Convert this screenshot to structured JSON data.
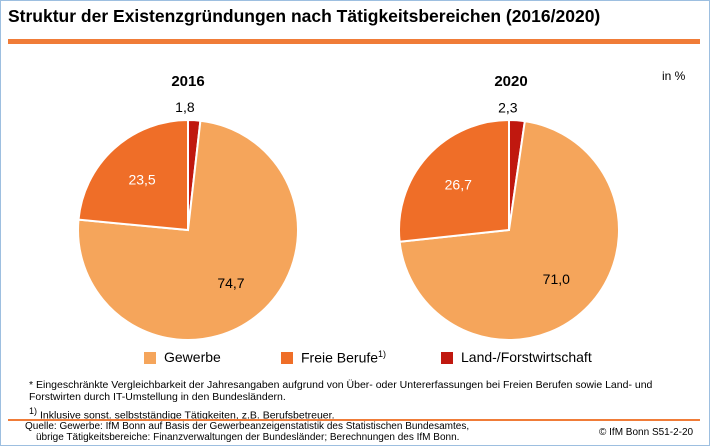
{
  "header": {
    "title": "Struktur der Existenzgründungen nach Tätigkeitsbereichen (2016/2020)",
    "unit": "in %"
  },
  "colors": {
    "accent": "#f07c38",
    "gewerbe": "#f5a55b",
    "freie_berufe": "#ef6e28",
    "land_forst": "#c0180f",
    "pie_border": "#ffffff"
  },
  "chart_data": [
    {
      "type": "pie",
      "title": "2016",
      "slices": [
        {
          "label": "Land-/Forstwirtschaft",
          "value": 1.8,
          "display": "1,8"
        },
        {
          "label": "Gewerbe",
          "value": 74.7,
          "display": "74,7"
        },
        {
          "label": "Freie Berufe",
          "value": 23.5,
          "display": "23,5"
        }
      ]
    },
    {
      "type": "pie",
      "title": "2020",
      "slices": [
        {
          "label": "Land-/Forstwirtschaft",
          "value": 2.3,
          "display": "2,3"
        },
        {
          "label": "Gewerbe",
          "value": 71.0,
          "display": "71,0"
        },
        {
          "label": "Freie Berufe",
          "value": 26.7,
          "display": "26,7"
        }
      ]
    }
  ],
  "legend": {
    "gewerbe": "Gewerbe",
    "freie_berufe": "Freie Berufe",
    "freie_berufe_sup": "1)",
    "land_forst": "Land-/Forstwirtschaft"
  },
  "notes": {
    "note1": "* Eingeschränkte Vergleichbarkeit der Jahresangaben aufgrund von Über- oder Untererfassungen bei Freien Berufen sowie Land- und Forstwirten durch IT-Umstellung in den Bundesländern.",
    "note2_mark": "1)",
    "note2": "Inklusive sonst. selbstständige Tätigkeiten, z.B. Berufsbetreuer."
  },
  "footer": {
    "source_line1": "Quelle: Gewerbe: IfM Bonn auf Basis der Gewerbeanzeigenstatistik des Statistischen Bundesamtes,",
    "source_line2": "übrige Tätigkeitsbereiche: Finanzverwaltungen der Bundesländer; Berechnungen des IfM Bonn.",
    "credit": "© IfM Bonn  S51-2-20"
  }
}
